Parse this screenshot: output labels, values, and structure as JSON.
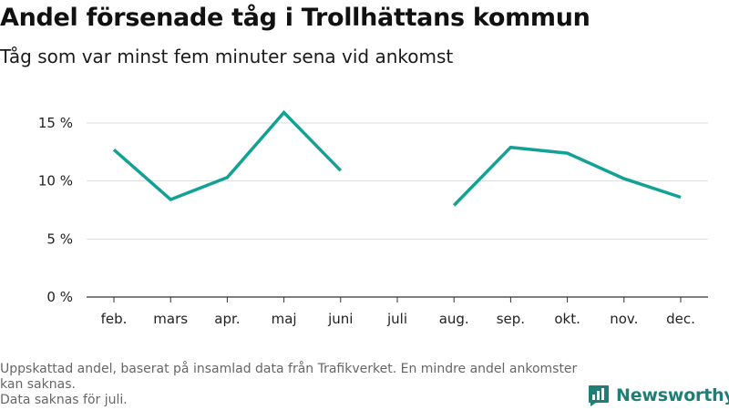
{
  "header": {
    "title": "Andel försenade tåg i Trollhättans kommun",
    "subtitle": "Tåg som var minst fem minuter sena vid ankomst"
  },
  "chart_data": {
    "type": "line",
    "title": "Andel försenade tåg i Trollhättans kommun",
    "subtitle": "Tåg som var minst fem minuter sena vid ankomst",
    "xlabel": "",
    "ylabel": "",
    "categories": [
      "feb.",
      "mars",
      "apr.",
      "maj",
      "juni",
      "juli",
      "aug.",
      "sep.",
      "okt.",
      "nov.",
      "dec."
    ],
    "series": [
      {
        "values": [
          12.7,
          8.4,
          10.3,
          15.9,
          10.9,
          null,
          7.9,
          12.9,
          12.4,
          10.2,
          8.6
        ]
      }
    ],
    "yticks": [
      {
        "value": 0,
        "label": "0 %"
      },
      {
        "value": 5,
        "label": "5 %"
      },
      {
        "value": 10,
        "label": "10 %"
      },
      {
        "value": 15,
        "label": "15 %"
      }
    ],
    "ylim": [
      0,
      15
    ],
    "grid": true,
    "line_color": "#14a195"
  },
  "footer": {
    "note_line1": "Uppskattad andel, baserat på insamlad data från Trafikverket. En mindre andel ankomster kan saknas.",
    "note_line2": "Data saknas för juli.",
    "brand": "Newsworthy",
    "logo_icon": "bar-chart-speech-icon",
    "brand_color": "#1f7f77"
  }
}
